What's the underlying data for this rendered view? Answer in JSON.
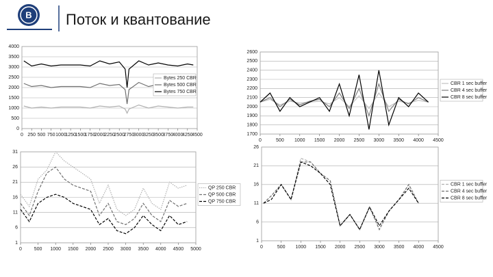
{
  "header": {
    "title": "Поток и квантование"
  },
  "chart_data": [
    {
      "type": "line",
      "xlim": [
        0,
        4500
      ],
      "xticks": [
        0,
        250,
        500,
        750,
        1000,
        1250,
        1500,
        1750,
        2000,
        2250,
        2500,
        2750,
        3000,
        3250,
        3500,
        3750,
        4000,
        4250,
        4500
      ],
      "ylim": [
        0,
        4000
      ],
      "yticks": [
        0,
        500,
        1000,
        1500,
        2000,
        2500,
        3000,
        3500,
        4000
      ],
      "grid": true,
      "legend": "inside-right",
      "x": [
        50,
        250,
        500,
        750,
        1000,
        1250,
        1500,
        1750,
        2000,
        2250,
        2500,
        2650,
        2700,
        2750,
        3000,
        3250,
        3500,
        3750,
        4000,
        4250,
        4400
      ],
      "series": [
        {
          "name": "Bytes 250 CBR",
          "color": "#b0b0b0",
          "style": "solid",
          "values": [
            1100,
            1000,
            1050,
            1000,
            1050,
            1050,
            1050,
            1000,
            1100,
            1050,
            1100,
            950,
            750,
            950,
            1150,
            1000,
            1100,
            1050,
            1000,
            1050,
            1050
          ]
        },
        {
          "name": "Bytes 500 CBR",
          "color": "#707070",
          "style": "solid",
          "values": [
            2200,
            2050,
            2100,
            2000,
            2050,
            2050,
            2050,
            2000,
            2200,
            2100,
            2150,
            1900,
            1200,
            1900,
            2250,
            2050,
            2150,
            2050,
            2000,
            2100,
            2050
          ]
        },
        {
          "name": "Bytes 750 CBR",
          "color": "#000000",
          "style": "solid",
          "values": [
            3300,
            3050,
            3150,
            3050,
            3100,
            3100,
            3100,
            3050,
            3300,
            3150,
            3250,
            2900,
            2000,
            2900,
            3300,
            3100,
            3200,
            3100,
            3050,
            3150,
            3100
          ]
        }
      ]
    },
    {
      "type": "line",
      "xlim": [
        0,
        4500
      ],
      "xticks": [
        0,
        500,
        1000,
        1500,
        2000,
        2500,
        3000,
        3500,
        4000,
        4500
      ],
      "ylim": [
        1700,
        2600
      ],
      "yticks": [
        1700,
        1800,
        1900,
        2000,
        2100,
        2200,
        2300,
        2400,
        2500,
        2600
      ],
      "grid": true,
      "legend": "right",
      "x": [
        0,
        250,
        500,
        750,
        1000,
        1250,
        1500,
        1750,
        2000,
        2250,
        2500,
        2750,
        3000,
        3250,
        3500,
        3750,
        4000,
        4250
      ],
      "series": [
        {
          "name": "CBR 1 sec buffer",
          "color": "#c0c0c0",
          "style": "solid",
          "values": [
            2050,
            2080,
            2020,
            2060,
            2040,
            2050,
            2060,
            2030,
            2100,
            2000,
            2120,
            1980,
            2150,
            2000,
            2060,
            2040,
            2070,
            2050
          ]
        },
        {
          "name": "CBR 4 sec buffer",
          "color": "#808080",
          "style": "solid",
          "values": [
            2050,
            2100,
            2000,
            2080,
            2020,
            2060,
            2080,
            2000,
            2150,
            1980,
            2200,
            1900,
            2250,
            1950,
            2080,
            2030,
            2100,
            2050
          ]
        },
        {
          "name": "CBR 8 sec buffer",
          "color": "#000000",
          "style": "solid",
          "values": [
            2050,
            2150,
            1950,
            2100,
            2000,
            2050,
            2100,
            1950,
            2250,
            1900,
            2350,
            1750,
            2400,
            1800,
            2100,
            2000,
            2150,
            2050
          ]
        }
      ]
    },
    {
      "type": "line",
      "xlim": [
        0,
        5000
      ],
      "xticks": [
        0,
        500,
        1000,
        1500,
        2000,
        2500,
        3000,
        3500,
        4000,
        4500,
        5000
      ],
      "ylim": [
        1,
        31
      ],
      "yticks": [
        1,
        6,
        11,
        16,
        21,
        26,
        31
      ],
      "grid": true,
      "legend": "right",
      "x": [
        0,
        250,
        500,
        750,
        1000,
        1250,
        1500,
        1750,
        2000,
        2250,
        2500,
        2750,
        3000,
        3250,
        3500,
        3750,
        4000,
        4250,
        4500,
        4750
      ],
      "series": [
        {
          "name": "QP 250 CBR",
          "color": "#b0b0b0",
          "style": "dotted",
          "values": [
            17,
            13,
            22,
            25,
            31,
            28,
            26,
            24,
            22,
            14,
            20,
            12,
            10,
            12,
            19,
            14,
            12,
            21,
            19,
            20
          ]
        },
        {
          "name": "QP 500 CBR",
          "color": "#707070",
          "style": "dashed",
          "values": [
            14,
            10,
            18,
            24,
            26,
            22,
            20,
            19,
            18,
            10,
            14,
            8,
            7,
            9,
            14,
            10,
            8,
            15,
            13,
            14
          ]
        },
        {
          "name": "QP 750 CBR",
          "color": "#000000",
          "style": "dashed",
          "values": [
            12,
            8,
            14,
            16,
            17,
            16,
            14,
            13,
            12,
            7,
            9,
            5,
            4,
            6,
            10,
            7,
            5,
            10,
            7,
            8
          ]
        }
      ]
    },
    {
      "type": "line",
      "xlim": [
        0,
        4500
      ],
      "xticks": [
        0,
        500,
        1000,
        1500,
        2000,
        2500,
        3000,
        3500,
        4000,
        4500
      ],
      "ylim": [
        1,
        26
      ],
      "yticks": [
        1,
        6,
        11,
        16,
        21,
        26
      ],
      "grid": true,
      "legend": "right",
      "x": [
        50,
        250,
        500,
        750,
        1000,
        1250,
        1500,
        1750,
        2000,
        2250,
        2500,
        2750,
        3000,
        3250,
        3500,
        3750,
        4000
      ],
      "series": [
        {
          "name": "CBR 1 sec buffer",
          "color": "#b0b0b0",
          "style": "dashed",
          "values": [
            11,
            13,
            16,
            12,
            23,
            22,
            19,
            17,
            5,
            8,
            4,
            10,
            4,
            9,
            12,
            16,
            11
          ]
        },
        {
          "name": "CBR 4 sec buffer",
          "color": "#707070",
          "style": "dashed",
          "values": [
            11,
            13,
            16,
            12,
            22,
            22,
            19,
            17,
            5,
            8,
            4,
            10,
            4,
            9,
            12,
            16,
            11
          ]
        },
        {
          "name": "CBR 8 sec buffer",
          "color": "#000000",
          "style": "dashed",
          "values": [
            11,
            12,
            16,
            12,
            22,
            21,
            19,
            16,
            5,
            8,
            4,
            10,
            5,
            9,
            12,
            15,
            11
          ]
        }
      ]
    }
  ]
}
